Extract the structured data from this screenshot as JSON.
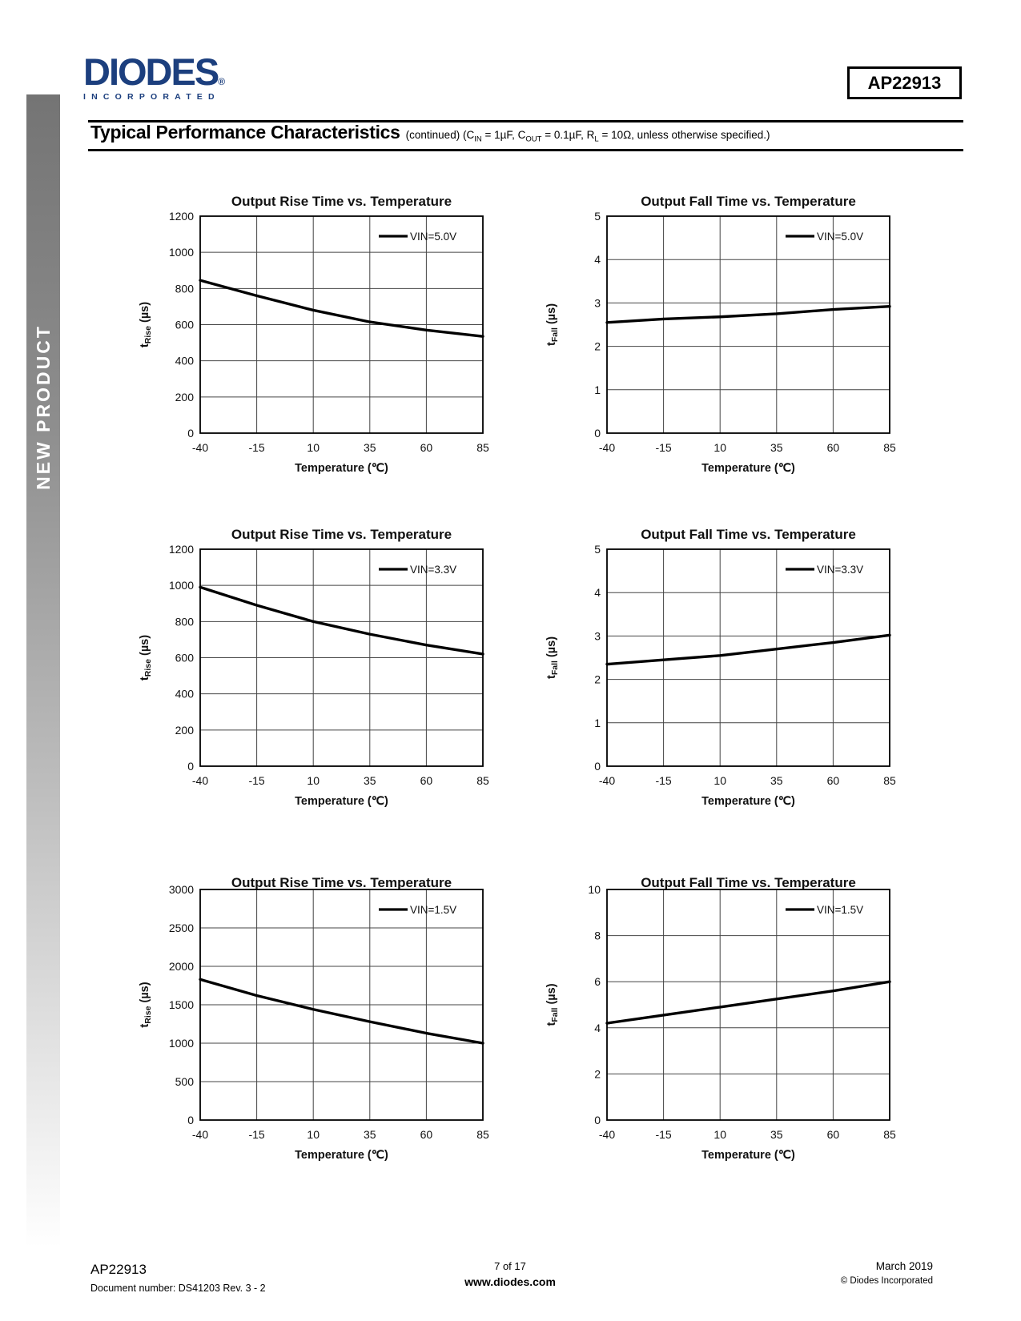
{
  "sidebar": {
    "label": "NEW PRODUCT"
  },
  "logo": {
    "brand": "DIODES",
    "registered": "®",
    "sub": "INCORPORATED"
  },
  "part_box": {
    "label": "AP22913"
  },
  "header": {
    "title": "Typical Performance Characteristics",
    "continued": "(continued)",
    "cond_pre": " (C",
    "sub_in": "IN",
    "cond_m1": " = 1µF, C",
    "sub_out": "OUT",
    "cond_m2": " = 0.1µF, R",
    "sub_l": "L",
    "cond_post": " = 10Ω, unless otherwise specified.)"
  },
  "chart_data": [
    {
      "type": "line",
      "title": "Output Rise Time vs. Temperature",
      "legend": "VIN=5.0V",
      "xlabel": "Temperature (℃)",
      "ylabel_pre": "t",
      "ylabel_sub": "Rise",
      "ylabel_unit": " (µs)",
      "x": [
        -40,
        -15,
        10,
        35,
        60,
        85
      ],
      "values": [
        845,
        760,
        680,
        615,
        570,
        535
      ],
      "xlim": [
        -40,
        85
      ],
      "ylim": [
        0,
        1200
      ],
      "xticks": [
        -40,
        -15,
        10,
        35,
        60,
        85
      ],
      "yticks": [
        0,
        200,
        400,
        600,
        800,
        1000,
        1200
      ],
      "grid": true,
      "legend_position": "top-right"
    },
    {
      "type": "line",
      "title": "Output Fall Time vs. Temperature",
      "legend": "VIN=5.0V",
      "xlabel": "Temperature (℃)",
      "ylabel_pre": "t",
      "ylabel_sub": "Fall",
      "ylabel_unit": " (µs)",
      "x": [
        -40,
        -15,
        10,
        35,
        60,
        85
      ],
      "values": [
        2.55,
        2.63,
        2.68,
        2.75,
        2.85,
        2.92
      ],
      "xlim": [
        -40,
        85
      ],
      "ylim": [
        0,
        5
      ],
      "xticks": [
        -40,
        -15,
        10,
        35,
        60,
        85
      ],
      "yticks": [
        0,
        1,
        2,
        3,
        4,
        5
      ],
      "grid": true,
      "legend_position": "top-right"
    },
    {
      "type": "line",
      "title": "Output Rise Time vs. Temperature",
      "legend": "VIN=3.3V",
      "xlabel": "Temperature (℃)",
      "ylabel_pre": "t",
      "ylabel_sub": "Rise",
      "ylabel_unit": " (µs)",
      "x": [
        -40,
        -15,
        10,
        35,
        60,
        85
      ],
      "values": [
        990,
        890,
        800,
        730,
        670,
        620
      ],
      "xlim": [
        -40,
        85
      ],
      "ylim": [
        0,
        1200
      ],
      "xticks": [
        -40,
        -15,
        10,
        35,
        60,
        85
      ],
      "yticks": [
        0,
        200,
        400,
        600,
        800,
        1000,
        1200
      ],
      "grid": true,
      "legend_position": "top-right"
    },
    {
      "type": "line",
      "title": "Output Fall Time vs. Temperature",
      "legend": "VIN=3.3V",
      "xlabel": "Temperature (℃)",
      "ylabel_pre": "t",
      "ylabel_sub": "Fall",
      "ylabel_unit": " (µs)",
      "x": [
        -40,
        -15,
        10,
        35,
        60,
        85
      ],
      "values": [
        2.35,
        2.45,
        2.55,
        2.7,
        2.85,
        3.02
      ],
      "xlim": [
        -40,
        85
      ],
      "ylim": [
        0,
        5
      ],
      "xticks": [
        -40,
        -15,
        10,
        35,
        60,
        85
      ],
      "yticks": [
        0,
        1,
        2,
        3,
        4,
        5
      ],
      "grid": true,
      "legend_position": "top-right"
    },
    {
      "type": "line",
      "title": "Output Rise Time vs. Temperature",
      "legend": "VIN=1.5V",
      "xlabel": "Temperature (℃)",
      "ylabel_pre": "t",
      "ylabel_sub": "Rise",
      "ylabel_unit": " (µs)",
      "x": [
        -40,
        -15,
        10,
        35,
        60,
        85
      ],
      "values": [
        1830,
        1620,
        1440,
        1280,
        1130,
        1000
      ],
      "xlim": [
        -40,
        85
      ],
      "ylim": [
        0,
        3000
      ],
      "xticks": [
        -40,
        -15,
        10,
        35,
        60,
        85
      ],
      "yticks": [
        0,
        500,
        1000,
        1500,
        2000,
        2500,
        3000
      ],
      "grid": true,
      "legend_position": "top-right"
    },
    {
      "type": "line",
      "title": "Output Fall Time vs. Temperature",
      "legend": "VIN=1.5V",
      "xlabel": "Temperature (℃)",
      "ylabel_pre": "t",
      "ylabel_sub": "Fall",
      "ylabel_unit": " (µs)",
      "x": [
        -40,
        -15,
        10,
        35,
        60,
        85
      ],
      "values": [
        4.2,
        4.55,
        4.9,
        5.25,
        5.6,
        6.0
      ],
      "xlim": [
        -40,
        85
      ],
      "ylim": [
        0,
        10
      ],
      "xticks": [
        -40,
        -15,
        10,
        35,
        60,
        85
      ],
      "yticks": [
        0,
        2,
        4,
        6,
        8,
        10
      ],
      "grid": true,
      "legend_position": "top-right"
    }
  ],
  "footer": {
    "part": "AP22913",
    "doc": "Document number: DS41203  Rev. 3 - 2",
    "page": "7 of 17",
    "site": "www.diodes.com",
    "date": "March 2019",
    "copyright": "© Diodes Incorporated"
  }
}
